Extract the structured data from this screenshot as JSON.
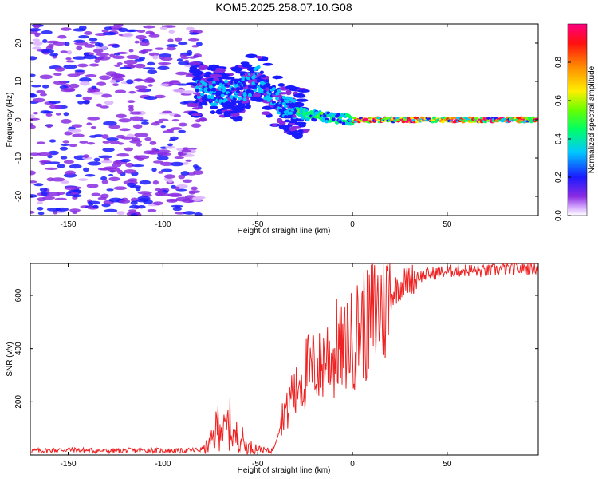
{
  "title": "KOM5.2025.258.07.10.G08",
  "chart_data": [
    {
      "type": "heatmap",
      "xlabel": "Height of straight line (km)",
      "ylabel": "Frequency (Hz)",
      "xlim": [
        -170,
        98
      ],
      "ylim": [
        -25,
        25
      ],
      "xticks": [
        -150,
        -100,
        -50,
        0,
        50
      ],
      "yticks": [
        -20,
        -10,
        0,
        10,
        20
      ],
      "colorbar": {
        "label": "Normalized spectral amplitude",
        "range": [
          0,
          1
        ],
        "ticks": [
          0.0,
          0.2,
          0.4,
          0.6,
          0.8
        ]
      },
      "description_points": [
        {
          "x": -60,
          "y": 7
        },
        {
          "x": -50,
          "y": 11
        },
        {
          "x": -40,
          "y": 5
        },
        {
          "x": -30,
          "y": 2
        },
        {
          "x": -20,
          "y": 1
        },
        {
          "x": 0,
          "y": 0
        },
        {
          "x": 50,
          "y": 0
        },
        {
          "x": 95,
          "y": 0
        }
      ]
    },
    {
      "type": "line",
      "xlabel": "Height of straight line (km)",
      "ylabel": "SNR (v/v)",
      "xlim": [
        -170,
        98
      ],
      "ylim": [
        0,
        720
      ],
      "xticks": [
        -150,
        -100,
        -50,
        0,
        50
      ],
      "yticks": [
        200,
        400,
        600
      ],
      "series": [
        {
          "name": "SNR",
          "color": "#ee2222",
          "x": [
            -170,
            -150,
            -130,
            -110,
            -90,
            -80,
            -75,
            -72,
            -70,
            -68,
            -65,
            -62,
            -60,
            -57,
            -55,
            -50,
            -45,
            -42,
            -38,
            -36,
            -34,
            -32,
            -30,
            -28,
            -26,
            -24,
            -22,
            -20,
            -18,
            -15,
            -12,
            -10,
            -8,
            -5,
            -2,
            0,
            3,
            5,
            8,
            10,
            15,
            20,
            25,
            30,
            35,
            40,
            50,
            60,
            70,
            80,
            90,
            97
          ],
          "values": [
            15,
            20,
            15,
            18,
            15,
            20,
            40,
            90,
            150,
            80,
            120,
            60,
            90,
            40,
            30,
            25,
            15,
            20,
            110,
            180,
            160,
            250,
            220,
            300,
            260,
            330,
            300,
            350,
            320,
            360,
            390,
            350,
            420,
            380,
            450,
            420,
            470,
            500,
            480,
            520,
            560,
            600,
            640,
            660,
            670,
            680,
            690,
            695,
            690,
            700,
            700,
            705
          ]
        }
      ]
    }
  ]
}
